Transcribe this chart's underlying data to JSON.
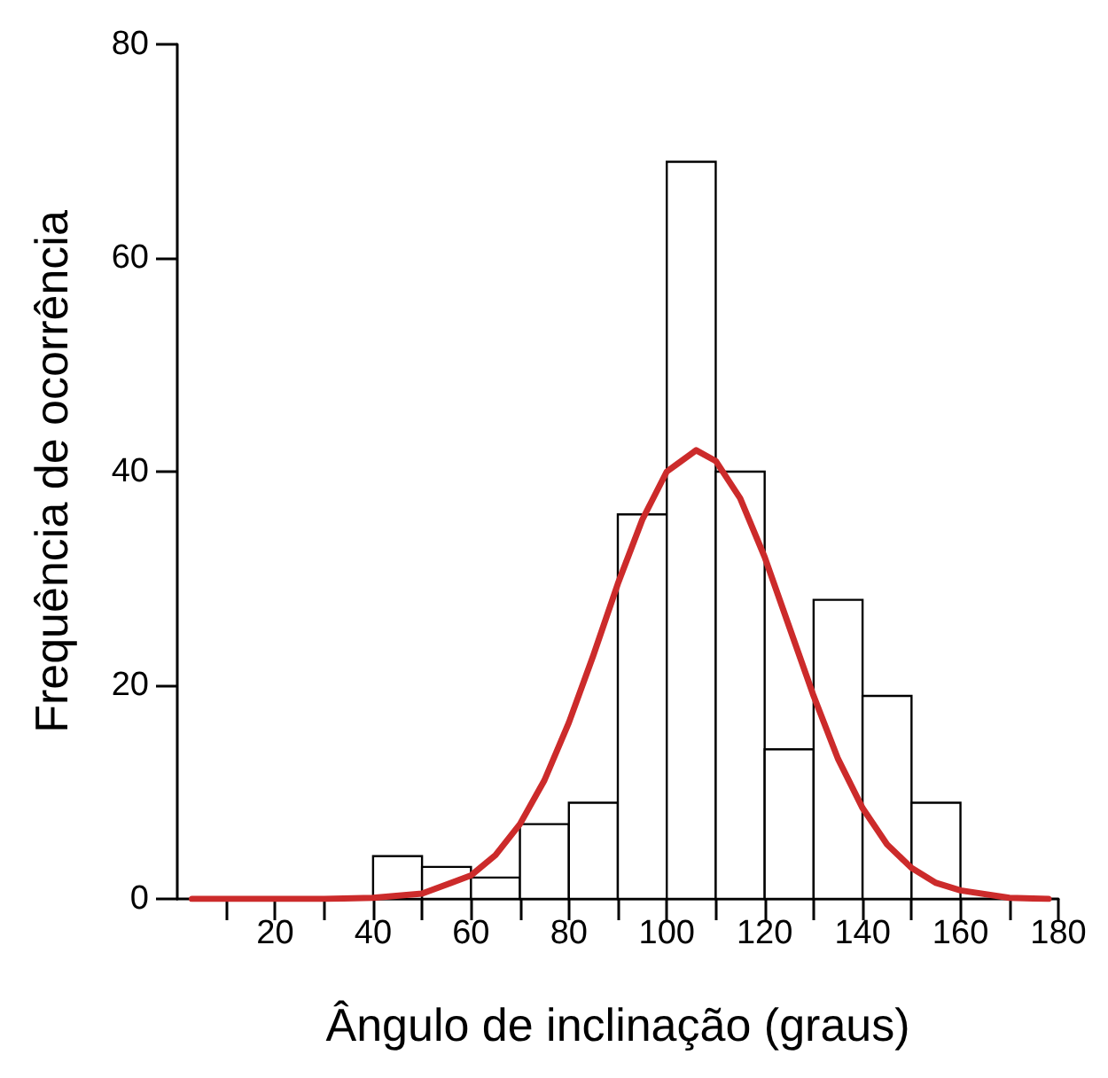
{
  "chart_data": {
    "type": "histogram",
    "xlabel": "Ângulo de inclinação (graus)",
    "ylabel": "Frequência de ocorrência",
    "bins": [
      40,
      50,
      60,
      70,
      80,
      90,
      100,
      110,
      120,
      130,
      140,
      150,
      160
    ],
    "values": [
      4,
      3,
      2,
      7,
      9,
      36,
      69,
      40,
      14,
      28,
      19,
      9
    ],
    "color": "#ffffff",
    "series": [
      {
        "type": "line",
        "color": "#cc2b2b",
        "x": [
          3,
          20,
          30,
          40,
          50,
          60,
          65,
          70,
          75,
          80,
          85,
          90,
          95,
          100,
          106,
          110,
          115,
          120,
          125,
          130,
          135,
          140,
          145,
          150,
          155,
          160,
          170,
          178
        ],
        "values": [
          0,
          0,
          0,
          0.1,
          0.5,
          2.2,
          4.1,
          7,
          11.1,
          16.5,
          22.8,
          29.5,
          35.5,
          40,
          42,
          41,
          37.5,
          32,
          25.5,
          19,
          13.1,
          8.5,
          5.1,
          2.9,
          1.5,
          0.8,
          0.1,
          0
        ]
      }
    ],
    "marker": "none",
    "line_style": "solid",
    "xlim": [
      0,
      180
    ],
    "xticks": [
      {
        "value": 10,
        "label": null
      },
      20,
      {
        "value": 30,
        "label": null
      },
      40,
      {
        "value": 50,
        "label": null
      },
      60,
      {
        "value": 70,
        "label": null
      },
      80,
      {
        "value": 90,
        "label": null
      },
      100,
      {
        "value": 110,
        "label": null
      },
      120,
      {
        "value": 130,
        "label": null
      },
      140,
      {
        "value": 150,
        "label": null
      },
      160,
      {
        "value": 170,
        "label": null
      },
      180
    ],
    "ylim": [
      0,
      80
    ],
    "yticks": [
      0,
      20,
      40,
      60,
      80
    ],
    "grid": false
  }
}
